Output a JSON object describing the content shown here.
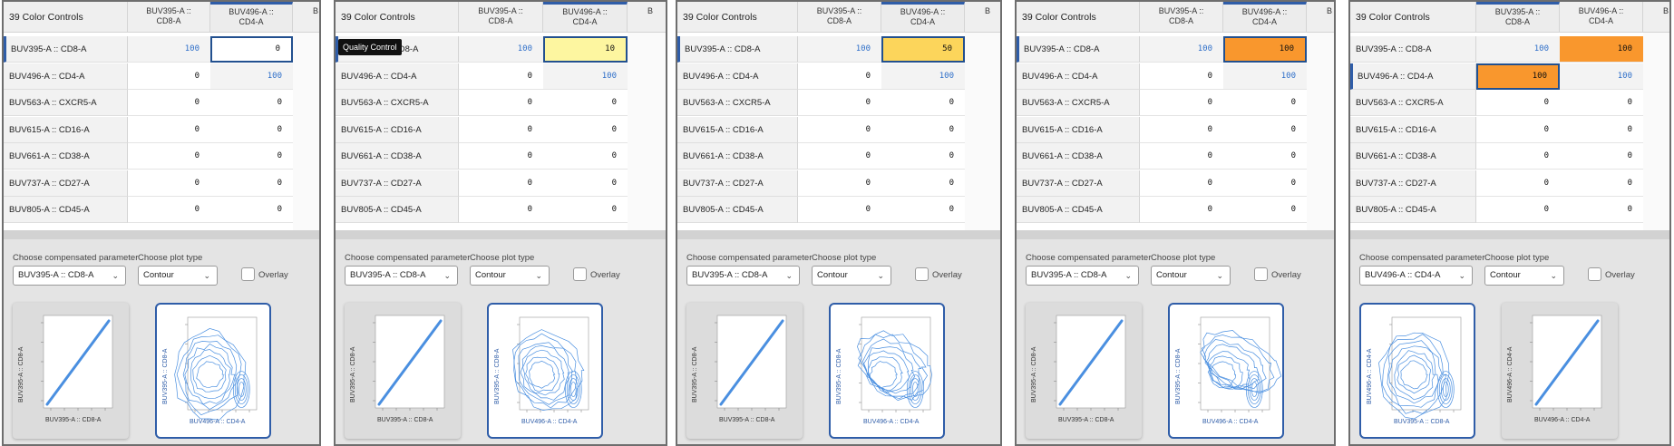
{
  "table": {
    "title": "39 Color Controls",
    "columns": [
      {
        "line1": "BUV395-A ::",
        "line2": "CD8-A"
      },
      {
        "line1": "BUV496-A ::",
        "line2": "CD4-A"
      }
    ],
    "rows": [
      "BUV395-A :: CD8-A",
      "BUV496-A :: CD4-A",
      "BUV563-A :: CXCR5-A",
      "BUV615-A :: CD16-A",
      "BUV661-A :: CD38-A",
      "BUV737-A :: CD27-A",
      "BUV805-A :: CD45-A"
    ],
    "tail_header": "B"
  },
  "controls": {
    "param_label": "Choose compensated parameter",
    "plot_label": "Choose plot type",
    "overlay_label": "Overlay",
    "plot_type": "Contour"
  },
  "tooltip": "Quality Control",
  "frames": [
    {
      "values": [
        [
          "100",
          "0"
        ],
        [
          "0",
          "100"
        ],
        [
          "0",
          "0"
        ],
        [
          "0",
          "0"
        ],
        [
          "0",
          "0"
        ],
        [
          "0",
          "0"
        ],
        [
          "0",
          "0"
        ]
      ],
      "selected_param": "BUV395-A :: CD8-A",
      "plot1": {
        "x": "BUV395-A :: CD8-A",
        "y": "BUV395-A :: CD8-A"
      },
      "plot2": {
        "x": "BUV496-A :: CD4-A",
        "y": "BUV395-A :: CD8-A"
      }
    },
    {
      "values": [
        [
          "100",
          "10"
        ],
        [
          "0",
          "100"
        ],
        [
          "0",
          "0"
        ],
        [
          "0",
          "0"
        ],
        [
          "0",
          "0"
        ],
        [
          "0",
          "0"
        ],
        [
          "0",
          "0"
        ]
      ],
      "selected_param": "BUV395-A :: CD8-A",
      "plot1": {
        "x": "BUV395-A :: CD8-A",
        "y": "BUV395-A :: CD8-A"
      },
      "plot2": {
        "x": "BUV496-A :: CD4-A",
        "y": "BUV395-A :: CD8-A"
      }
    },
    {
      "values": [
        [
          "100",
          "50"
        ],
        [
          "0",
          "100"
        ],
        [
          "0",
          "0"
        ],
        [
          "0",
          "0"
        ],
        [
          "0",
          "0"
        ],
        [
          "0",
          "0"
        ],
        [
          "0",
          "0"
        ]
      ],
      "selected_param": "BUV395-A :: CD8-A",
      "plot1": {
        "x": "BUV395-A :: CD8-A",
        "y": "BUV395-A :: CD8-A"
      },
      "plot2": {
        "x": "BUV496-A :: CD4-A",
        "y": "BUV395-A :: CD8-A"
      }
    },
    {
      "values": [
        [
          "100",
          "100"
        ],
        [
          "0",
          "100"
        ],
        [
          "0",
          "0"
        ],
        [
          "0",
          "0"
        ],
        [
          "0",
          "0"
        ],
        [
          "0",
          "0"
        ],
        [
          "0",
          "0"
        ]
      ],
      "selected_param": "BUV395-A :: CD8-A",
      "plot1": {
        "x": "BUV395-A :: CD8-A",
        "y": "BUV395-A :: CD8-A"
      },
      "plot2": {
        "x": "BUV496-A :: CD4-A",
        "y": "BUV395-A :: CD8-A"
      }
    },
    {
      "values": [
        [
          "100",
          "100"
        ],
        [
          "100",
          "100"
        ],
        [
          "0",
          "0"
        ],
        [
          "0",
          "0"
        ],
        [
          "0",
          "0"
        ],
        [
          "0",
          "0"
        ],
        [
          "0",
          "0"
        ]
      ],
      "selected_param": "BUV496-A :: CD4-A",
      "plot1": {
        "x": "BUV395-A :: CD8-A",
        "y": "BUV496-A :: CD4-A"
      },
      "plot2": {
        "x": "BUV496-A :: CD4-A",
        "y": "BUV496-A :: CD4-A"
      }
    }
  ],
  "colors": {
    "accent": "#2f5da8",
    "diagonal_text": "#2f6fc9",
    "yellow_light": "#fdf6a0",
    "yellow": "#fcd55b",
    "orange": "#f9972d",
    "plot_line": "#4a8fe0"
  },
  "icons": [
    "chevron-down-icon",
    "checkbox-icon"
  ]
}
